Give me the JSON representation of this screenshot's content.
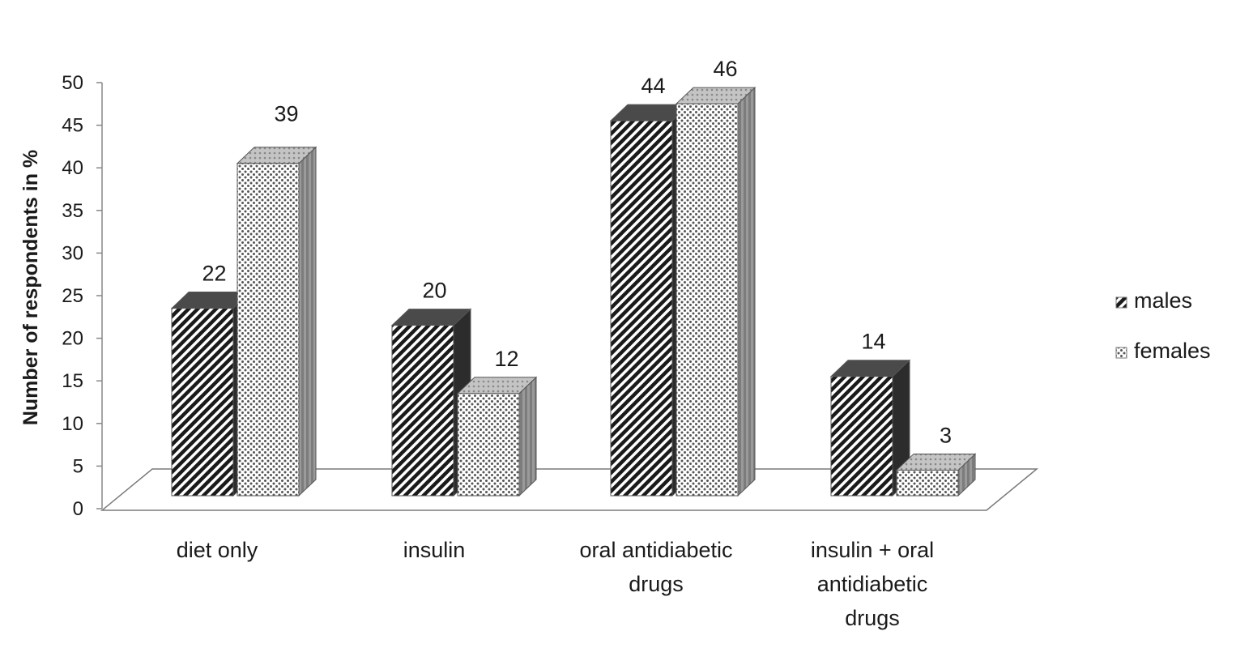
{
  "chart_data": {
    "type": "bar",
    "title": "",
    "xlabel": "",
    "ylabel": "Number of respondents in %",
    "ylim": [
      0,
      50
    ],
    "y_ticks": [
      "0",
      "5",
      "10",
      "15",
      "20",
      "25",
      "30",
      "35",
      "40",
      "45",
      "50"
    ],
    "categories": [
      [
        "diet only"
      ],
      [
        "insulin"
      ],
      [
        "oral antidiabetic",
        "drugs"
      ],
      [
        "insulin + oral",
        "antidiabetic",
        "drugs"
      ]
    ],
    "series": [
      {
        "name": "males",
        "values": [
          22,
          20,
          44,
          14
        ],
        "pattern": "diagonal-hatch",
        "color": "#1a1a1a"
      },
      {
        "name": "females",
        "values": [
          39,
          12,
          46,
          3
        ],
        "pattern": "dots",
        "color": "#7a7a7a"
      }
    ],
    "data_labels": [
      [
        "22",
        "20",
        "44",
        "14"
      ],
      [
        "39",
        "12",
        "46",
        "3"
      ]
    ],
    "legend_position": "right",
    "grid": false,
    "style": "3d-clustered-column"
  }
}
